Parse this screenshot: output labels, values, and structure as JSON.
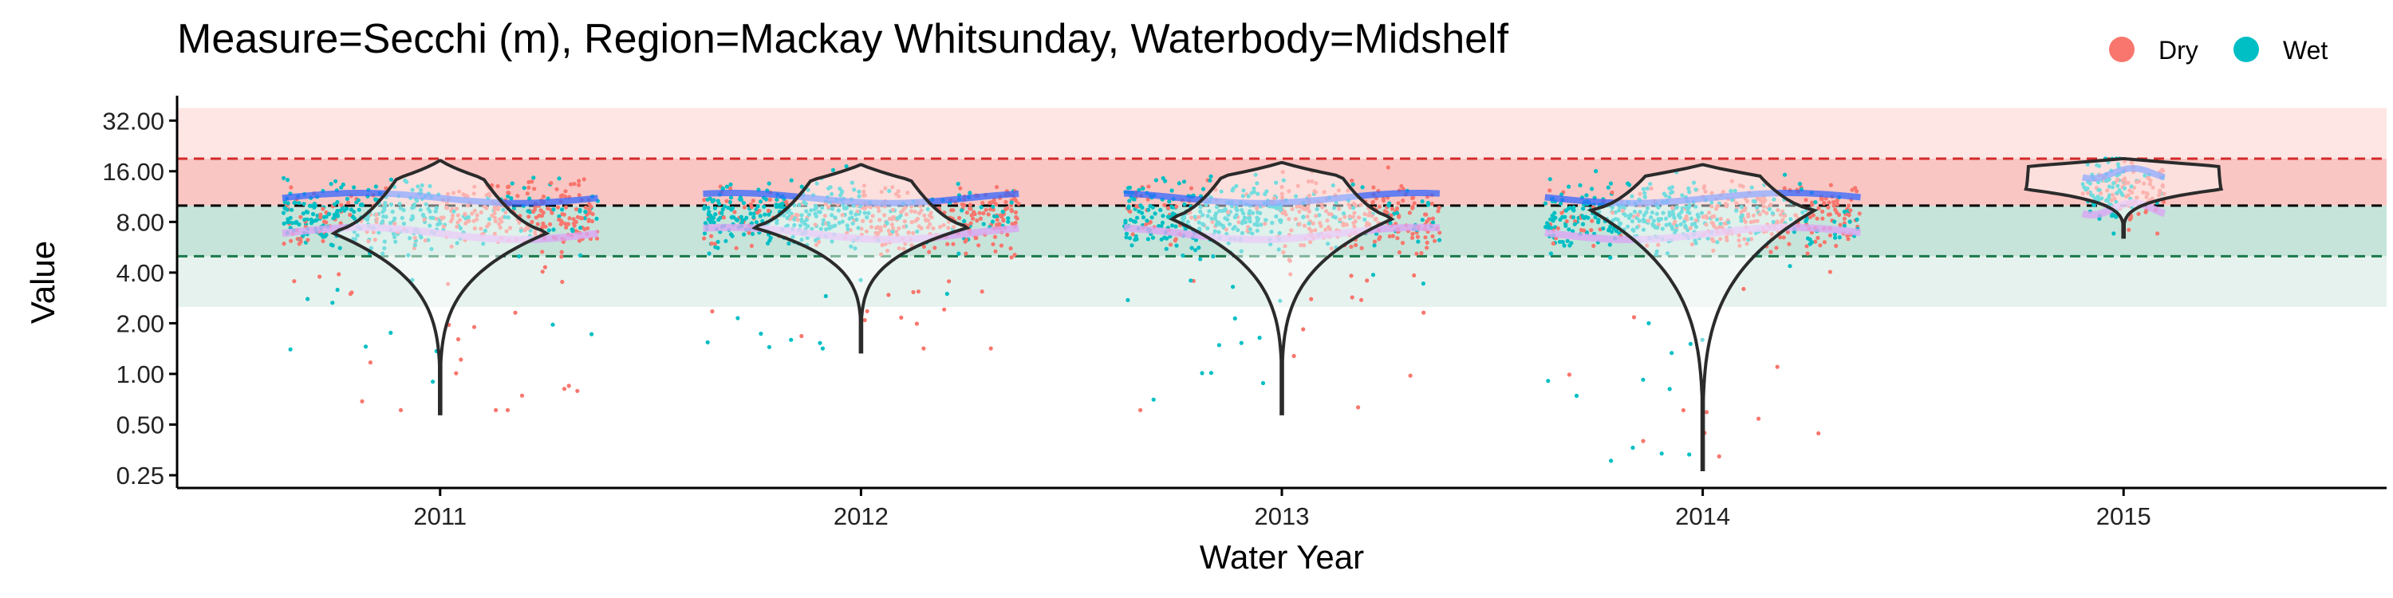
{
  "chart_data": {
    "type": "violin",
    "title": "Measure=Secchi (m), Region=Mackay Whitsunday, Waterbody=Midshelf",
    "xlabel": "Water Year",
    "ylabel": "Value",
    "scale_y": "log2",
    "ylim": [
      0.21,
      45
    ],
    "y_ticks": [
      "0.25",
      "0.50",
      "1.00",
      "2.00",
      "4.00",
      "8.00",
      "16.00",
      "32.00"
    ],
    "y_tick_values": [
      0.25,
      0.5,
      1,
      2,
      4,
      8,
      16,
      32
    ],
    "categories": [
      "2011",
      "2012",
      "2013",
      "2014",
      "2015"
    ],
    "legend": {
      "position": "top-right",
      "entries": [
        {
          "name": "Dry",
          "color": "#F8766D"
        },
        {
          "name": "Wet",
          "color": "#00BFC4"
        }
      ]
    },
    "bands": [
      {
        "from": 2.5,
        "to": 5.0,
        "color": "#e6f2ee"
      },
      {
        "from": 5.0,
        "to": 10.0,
        "color": "#c6e4da"
      },
      {
        "from": 10.0,
        "to": 19.0,
        "color": "#f9c6c3"
      },
      {
        "from": 19.0,
        "to": 38.0,
        "color": "#fde6e4"
      }
    ],
    "reference_lines": [
      {
        "value": 5.0,
        "color": "#1a7a4a",
        "style": "dashed"
      },
      {
        "value": 10.0,
        "color": "#000000",
        "style": "dashed"
      },
      {
        "value": 19.0,
        "color": "#d42a2a",
        "style": "dashed"
      }
    ],
    "groups": [
      {
        "year": "2011",
        "median": 10.0,
        "min": 0.58,
        "max": 18.5,
        "mode": 7.0,
        "mode_width": 0.7,
        "upper_width": 0.2
      },
      {
        "year": "2012",
        "median": 10.0,
        "min": 1.35,
        "max": 17.5,
        "mode": 7.5,
        "mode_width": 0.7,
        "upper_width": 0.25
      },
      {
        "year": "2013",
        "median": 10.0,
        "min": 0.58,
        "max": 18.0,
        "mode": 8.5,
        "mode_width": 0.72,
        "upper_width": 0.32
      },
      {
        "year": "2014",
        "median": 10.0,
        "min": 0.27,
        "max": 17.5,
        "mode": 9.5,
        "mode_width": 0.72,
        "upper_width": 0.3
      },
      {
        "year": "2015",
        "median": 14.0,
        "min": 6.5,
        "max": 19.0,
        "mode": 12.5,
        "mode_width": 0.62,
        "upper_width": 0.6
      }
    ]
  }
}
